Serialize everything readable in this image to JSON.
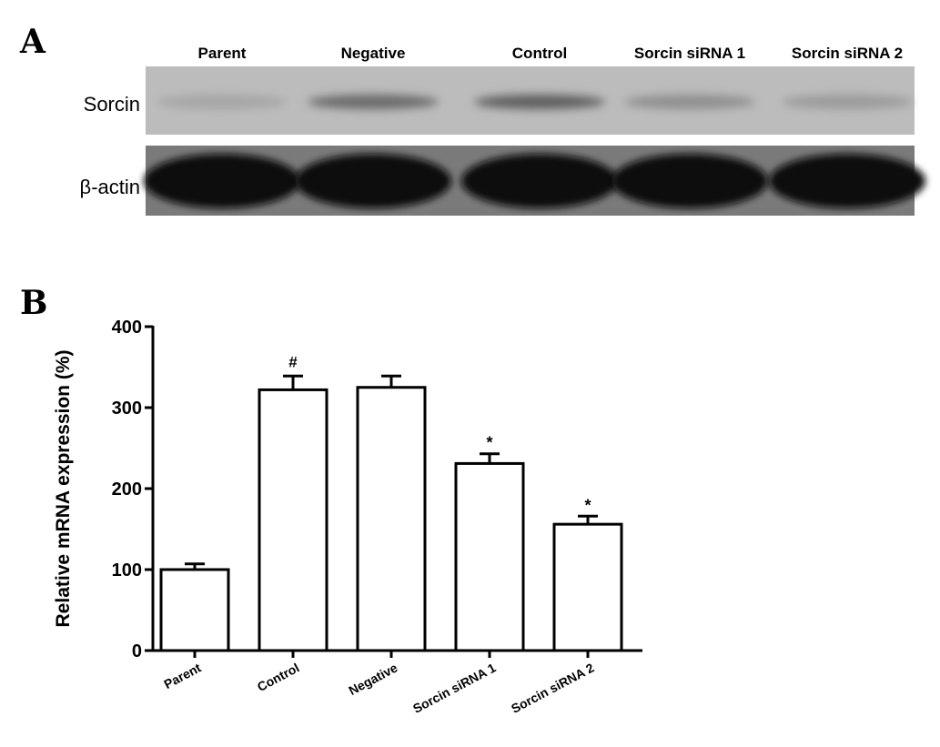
{
  "panel_a": {
    "letter": "A",
    "lanes": [
      "Parent",
      "Negative",
      "Control",
      "Sorcin siRNA 1",
      "Sorcin siRNA 2"
    ],
    "rows": [
      {
        "label": "Sorcin",
        "band_intensity": [
          0.15,
          0.55,
          0.62,
          0.3,
          0.22
        ]
      },
      {
        "label": "β-actin",
        "band_intensity": [
          1,
          1,
          1,
          1,
          1
        ]
      }
    ]
  },
  "panel_b": {
    "letter": "B"
  },
  "chart_data": {
    "type": "bar",
    "categories": [
      "Parent",
      "Control",
      "Negative",
      "Sorcin siRNA 1",
      "Sorcin siRNA 2"
    ],
    "values": [
      100,
      322,
      325,
      231,
      156
    ],
    "errors": [
      7,
      17,
      14,
      12,
      10
    ],
    "annotations": [
      "",
      "#",
      "",
      "*",
      "*"
    ],
    "ylabel": "Relative mRNA expression (%)",
    "ylim": [
      0,
      400
    ],
    "yticks": [
      0,
      100,
      200,
      300,
      400
    ],
    "bar_fill": "#ffffff",
    "bar_stroke": "#000000",
    "grid": false
  }
}
